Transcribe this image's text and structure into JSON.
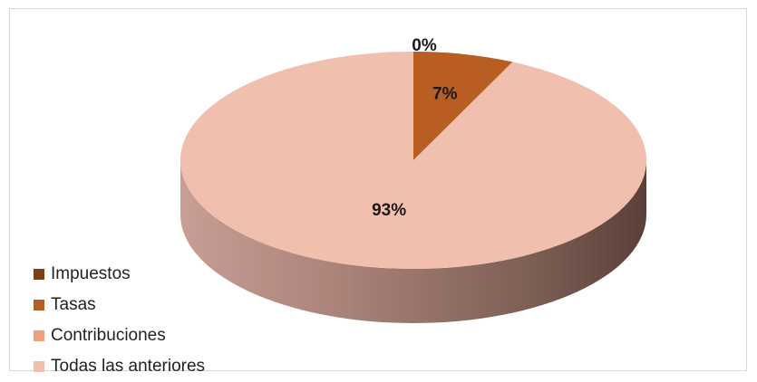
{
  "chart_data": {
    "type": "pie",
    "style": "3d",
    "title": "",
    "categories": [
      "Impuestos",
      "Tasas",
      "Contribuciones",
      "Todas las anteriores"
    ],
    "values": [
      0,
      7,
      0,
      93
    ],
    "data_labels": [
      "0%",
      "7%",
      "",
      "93%"
    ],
    "colors": [
      "#7e3f16",
      "#b85e22",
      "#ee9f7d",
      "#f1bfae"
    ],
    "legend_position": "bottom-left"
  }
}
